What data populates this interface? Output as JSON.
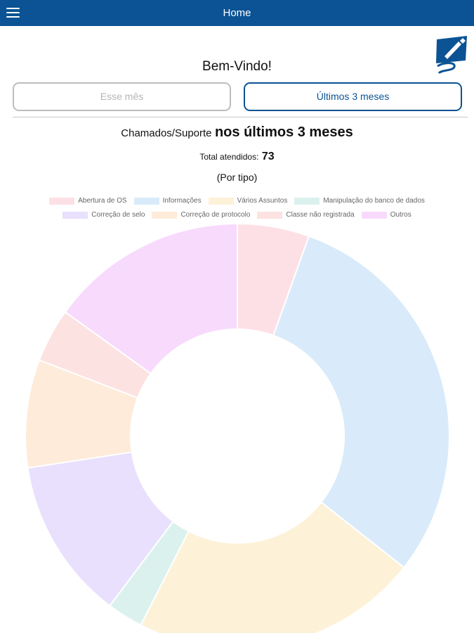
{
  "header": {
    "title": "Home",
    "menu_icon": "hamburger-menu-icon"
  },
  "logo": {
    "icon": "pen-signature-logo",
    "color": "#0b5394"
  },
  "welcome": "Bem-Vindo!",
  "period_buttons": [
    {
      "label": "Esse mês",
      "selected": false
    },
    {
      "label": "Últimos 3 meses",
      "selected": true
    }
  ],
  "summary": {
    "prefix": "Chamados/Suporte",
    "emphasis": "nos últimos 3 meses",
    "total_label": "Total atendidos:",
    "total_value": "73",
    "grouping": "(Por tipo)"
  },
  "chart_data": {
    "type": "pie",
    "variant": "doughnut",
    "legend_position": "top",
    "categories": [
      "Abertura de OS",
      "Informações",
      "Vários Assuntos",
      "Manipulação do banco de dados",
      "Correção de selo",
      "Correção de protocolo",
      "Classe não registrada",
      "Outros"
    ],
    "values": [
      4,
      22,
      16,
      2,
      9,
      6,
      3,
      11
    ],
    "colors": [
      "#fde0e6",
      "#d9ebfa",
      "#fdf1d8",
      "#dbf1ee",
      "#e8e0fd",
      "#feebd9",
      "#fde2e2",
      "#f8dafd"
    ]
  }
}
